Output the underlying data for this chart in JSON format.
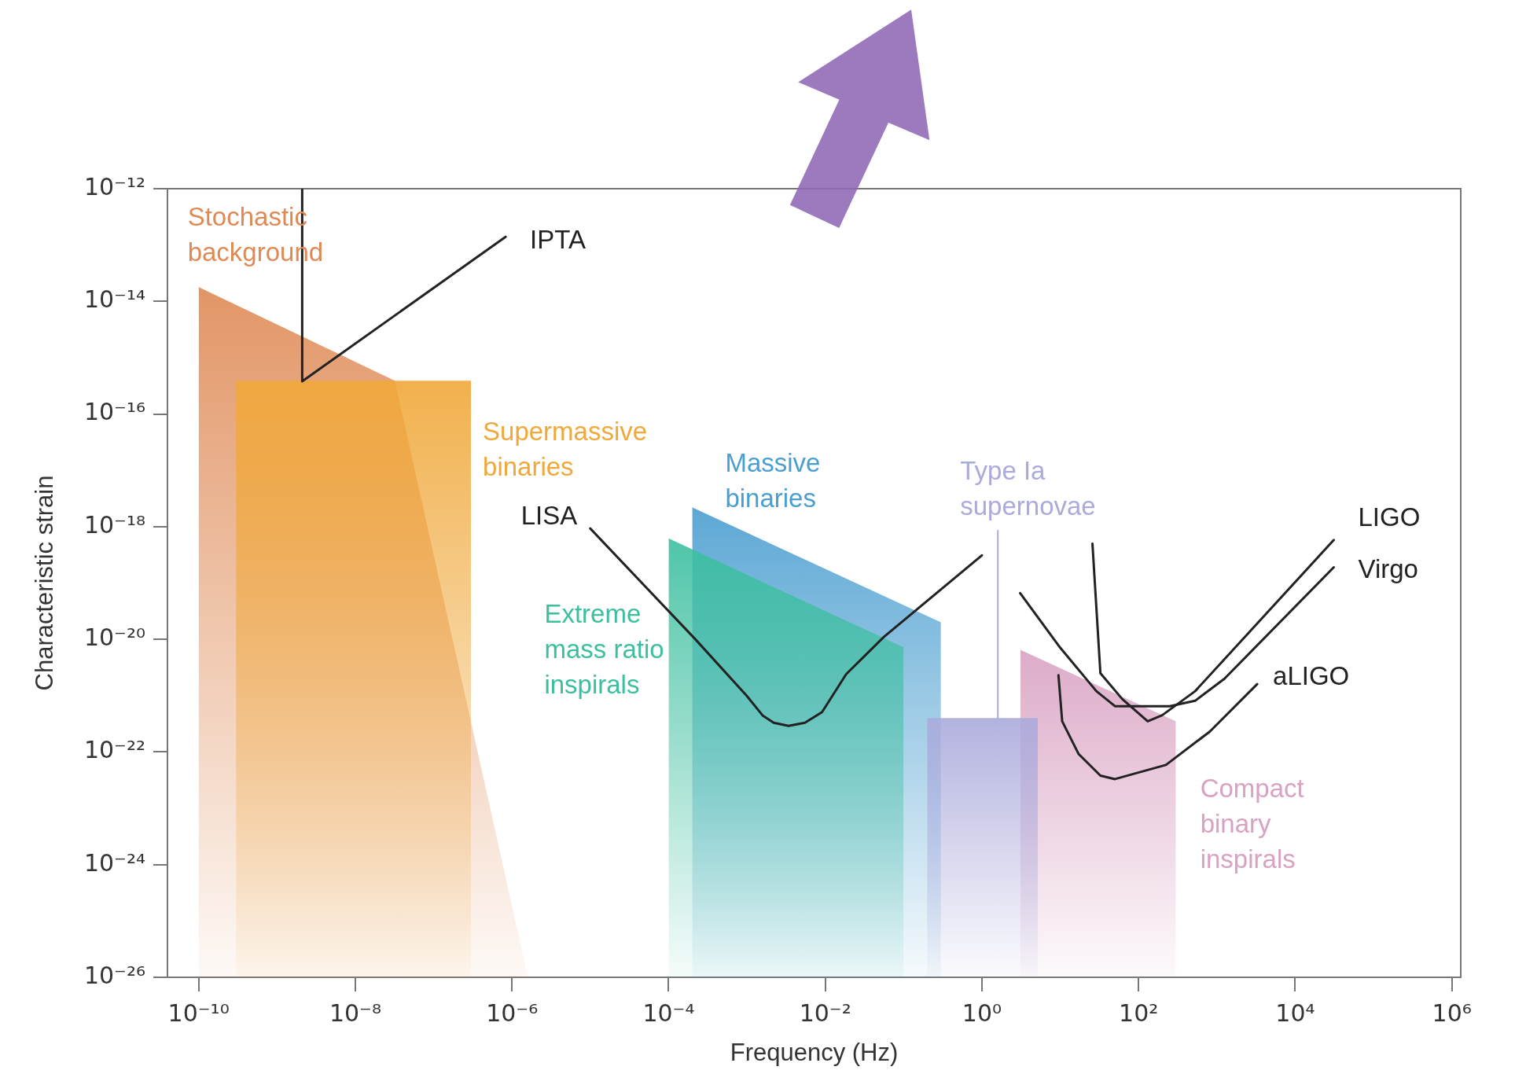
{
  "chart_data": {
    "type": "area",
    "xlabel": "Frequency (Hz)",
    "ylabel": "Characteristic strain",
    "log": "xy",
    "grid": false,
    "legend": false,
    "xlim": [
      4e-11,
      1300000.0
    ],
    "ylim": [
      1e-26,
      1e-12
    ],
    "xticks": [
      {
        "value": 1e-10,
        "label": "10⁻¹⁰"
      },
      {
        "value": 1e-08,
        "label": "10⁻⁸"
      },
      {
        "value": 1e-06,
        "label": "10⁻⁶"
      },
      {
        "value": 0.0001,
        "label": "10⁻⁴"
      },
      {
        "value": 0.01,
        "label": "10⁻²"
      },
      {
        "value": 1,
        "label": "10⁰"
      },
      {
        "value": 100,
        "label": "10²"
      },
      {
        "value": 10000.0,
        "label": "10⁴"
      },
      {
        "value": 1000000.0,
        "label": "10⁶"
      }
    ],
    "yticks": [
      {
        "value": 1e-26,
        "label": "10⁻²⁶"
      },
      {
        "value": 1e-24,
        "label": "10⁻²⁴"
      },
      {
        "value": 1e-22,
        "label": "10⁻²²"
      },
      {
        "value": 1e-20,
        "label": "10⁻²⁰"
      },
      {
        "value": 1e-18,
        "label": "10⁻¹⁸"
      },
      {
        "value": 1e-16,
        "label": "10⁻¹⁶"
      },
      {
        "value": 1e-14,
        "label": "10⁻¹⁴"
      },
      {
        "value": 1e-12,
        "label": "10⁻¹²"
      }
    ],
    "series": [
      {
        "name": "Stochastic background",
        "color": "#df8a55",
        "x": [
          1e-10,
          3.2e-08,
          1.6e-06
        ],
        "values": [
          1.8e-14,
          3.9e-16,
          1e-26
        ]
      },
      {
        "name": "Supermassive binaries",
        "color": "#f0a83a",
        "x": [
          3e-10,
          3e-07
        ],
        "values": [
          3.9e-16,
          3.9e-16
        ]
      },
      {
        "name": "Massive binaries",
        "color": "#4a9ed0",
        "x": [
          0.0002,
          0.3
        ],
        "values": [
          2.2e-18,
          2e-20
        ]
      },
      {
        "name": "Extreme mass ratio inspirals",
        "color": "#3cbf9e",
        "x": [
          0.0001,
          0.1
        ],
        "values": [
          6.2e-19,
          7.2e-21
        ]
      },
      {
        "name": "Compact binary inspirals",
        "color": "#d9a2c2",
        "x": [
          3.1,
          300
        ],
        "values": [
          6.5e-21,
          3.5e-22
        ]
      },
      {
        "color": "#aaaadc",
        "x": [
          0.2,
          5.2
        ],
        "values": [
          4e-22,
          4e-22
        ]
      },
      {
        "type": "line",
        "name": "Type Ia supernovae",
        "color": "#aaaadc",
        "x": [
          1.6,
          1.6
        ],
        "values": [
          8.5e-19,
          4e-22
        ]
      },
      {
        "type": "line",
        "name": "IPTA",
        "color": "#222222",
        "x": [
          2.1e-09,
          2.1e-09,
          8.3e-07
        ],
        "values": [
          1e-12,
          3.8e-16,
          1.4e-13
        ]
      },
      {
        "type": "line",
        "name": "LISA",
        "color": "#222222",
        "x": [
          1e-05,
          4.8e-05,
          0.00022,
          0.00099,
          0.0016,
          0.0022,
          0.0034,
          0.0055,
          0.0091,
          0.0185,
          0.056,
          1.0
        ],
        "values": [
          9.3e-19,
          9.3e-20,
          1e-20,
          1e-21,
          4.4e-22,
          3.3e-22,
          2.9e-22,
          3.3e-22,
          5.1e-22,
          2.4e-21,
          1.1e-20,
          3.1e-19
        ]
      },
      {
        "type": "line",
        "name": "LIGO",
        "color": "#222222",
        "x": [
          25.8,
          32.6,
          62,
          131,
          201,
          528,
          31100
        ],
        "values": [
          5e-19,
          2.5e-21,
          8.7e-22,
          3.5e-22,
          4.5e-22,
          1.2e-21,
          5.8e-19
        ]
      },
      {
        "type": "line",
        "name": "Virgo",
        "color": "#222222",
        "x": [
          3.08,
          10,
          29,
          50,
          250,
          528,
          1250,
          31100
        ],
        "values": [
          6.6e-20,
          7.1e-21,
          1.2e-21,
          6.5e-22,
          6.5e-22,
          8.1e-22,
          2e-21,
          1.9e-19
        ]
      },
      {
        "type": "line",
        "name": "aLIGO",
        "color": "#222222",
        "x": [
          9.5,
          10.6,
          17.1,
          32.6,
          50,
          224,
          813,
          3270
        ],
        "values": [
          2.3e-21,
          3.5e-22,
          9.3e-23,
          3.8e-23,
          3.3e-23,
          5.9e-23,
          2.3e-22,
          1.6e-21
        ]
      }
    ]
  }
}
